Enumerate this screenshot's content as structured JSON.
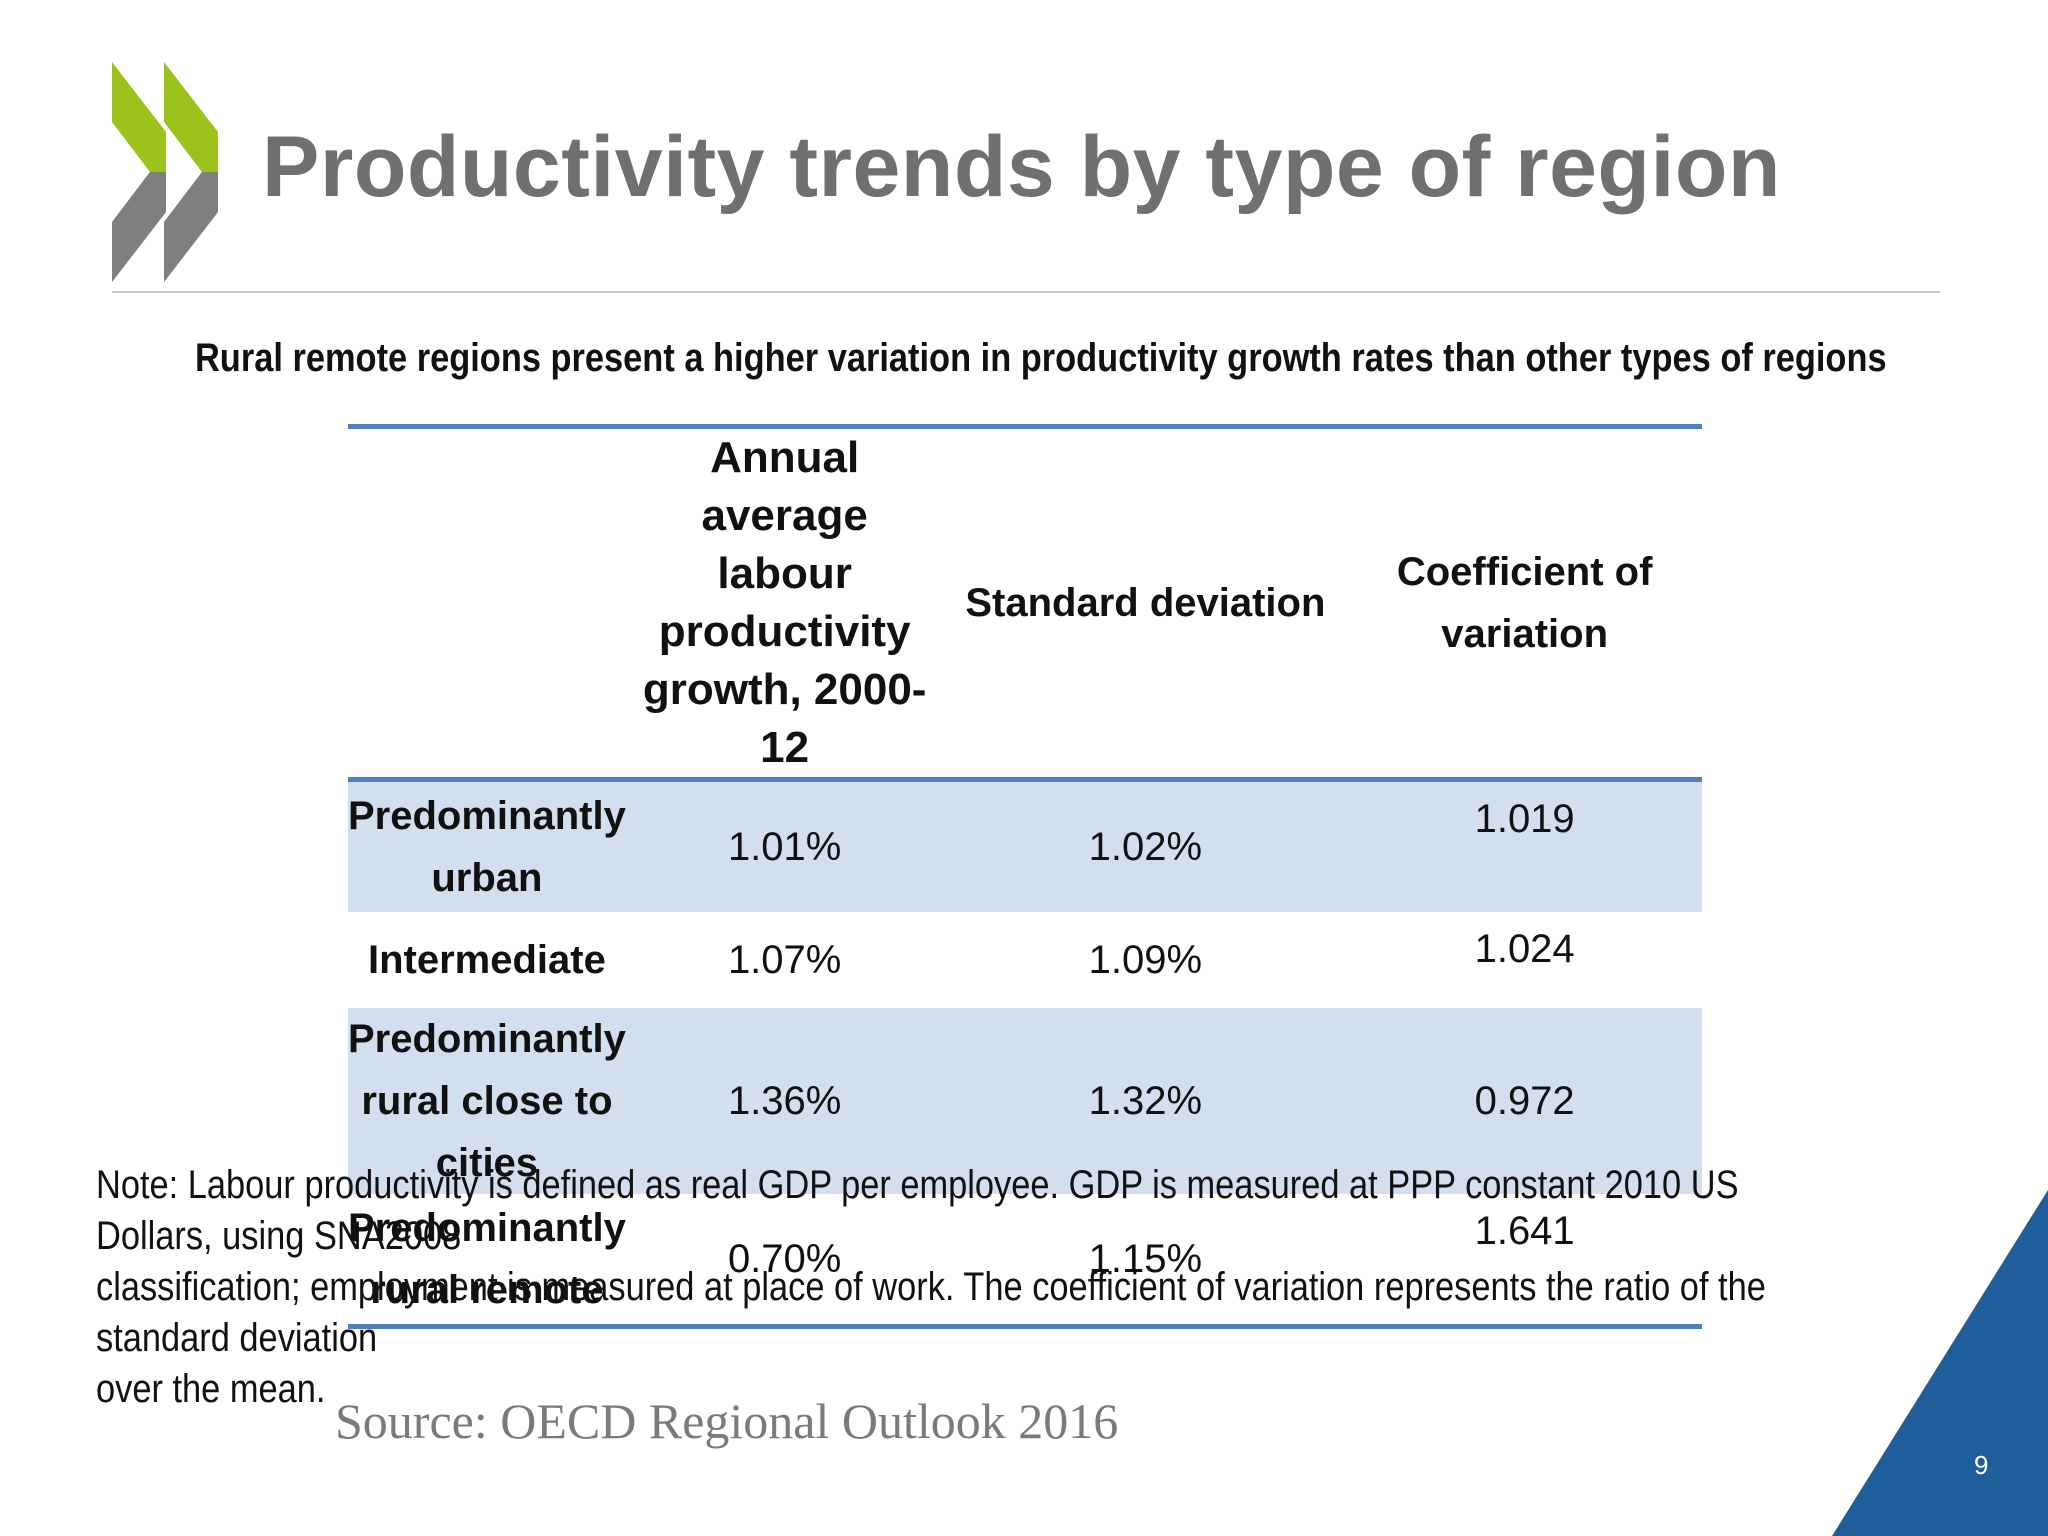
{
  "slide": {
    "title": "Productivity trends by type of region",
    "subtitle": "Rural remote regions present a higher variation in productivity growth rates than other types of regions",
    "page_number": "9",
    "colors": {
      "title": "#707070",
      "logo_green": "#9bc31c",
      "logo_grey": "#7f7f7f",
      "table_rule": "#4f81bd",
      "row_shade": "#d3dfee",
      "corner_blue": "#1f5e9a"
    }
  },
  "table": {
    "headers": {
      "region": "",
      "growth_line1": "Annual average",
      "growth_line2": "labour productivity",
      "growth_line3": "growth, 2000-12",
      "std": "Standard deviation",
      "cv_line1": "Coefficient of",
      "cv_line2": "variation"
    },
    "rows": [
      {
        "region_line1": "Predominantly",
        "region_line2": "urban",
        "region_line3": "",
        "growth": "1.01%",
        "std": "1.02%",
        "cv": "1.019"
      },
      {
        "region_line1": "Intermediate",
        "region_line2": "",
        "region_line3": "",
        "growth": "1.07%",
        "std": "1.09%",
        "cv": "1.024"
      },
      {
        "region_line1": "Predominantly",
        "region_line2": "rural close to",
        "region_line3": "cities",
        "growth": "1.36%",
        "std": "1.32%",
        "cv": "0.972"
      },
      {
        "region_line1": "Predominantly",
        "region_line2": "rural remote",
        "region_line3": "",
        "growth": "0.70%",
        "std": "1.15%",
        "cv": "1.641"
      }
    ]
  },
  "note": {
    "line1": "Note: Labour productivity is defined as real GDP per employee. GDP is measured at PPP constant 2010 US Dollars, using SNA2008",
    "line2": "classification; employment is measured at place of work. The coefficient of variation represents the ratio of the standard deviation",
    "line3": "over the mean."
  },
  "source": "Source: OECD Regional Outlook 2016"
}
